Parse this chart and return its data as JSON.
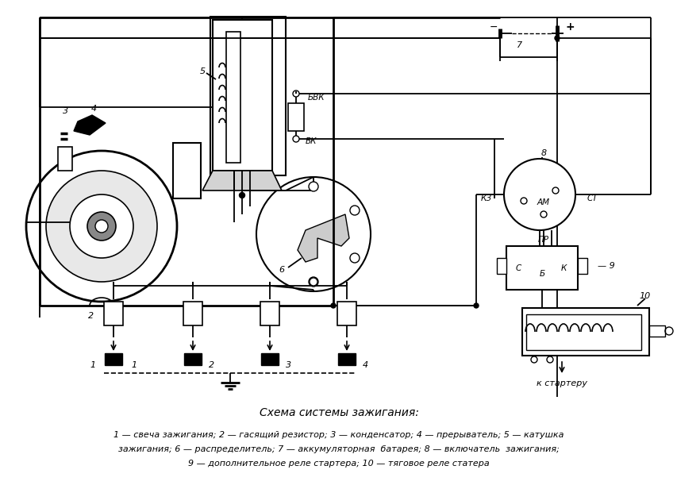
{
  "title": "Схема системы зажигания:",
  "caption_line1": "1 — свеча зажигания; 2 — гасящий резистор; 3 — конденсатор; 4 — прерыватель; 5 — катушка",
  "caption_line2": "зажигания; 6 — распределитель; 7 — аккумуляторная  батарея; 8 — включатель  зажигания;",
  "caption_line3": "9 — дополнительное реле стартера; 10 — тяговое реле статера",
  "bg_color": "#ffffff",
  "fg_color": "#000000",
  "lw": 1.3
}
